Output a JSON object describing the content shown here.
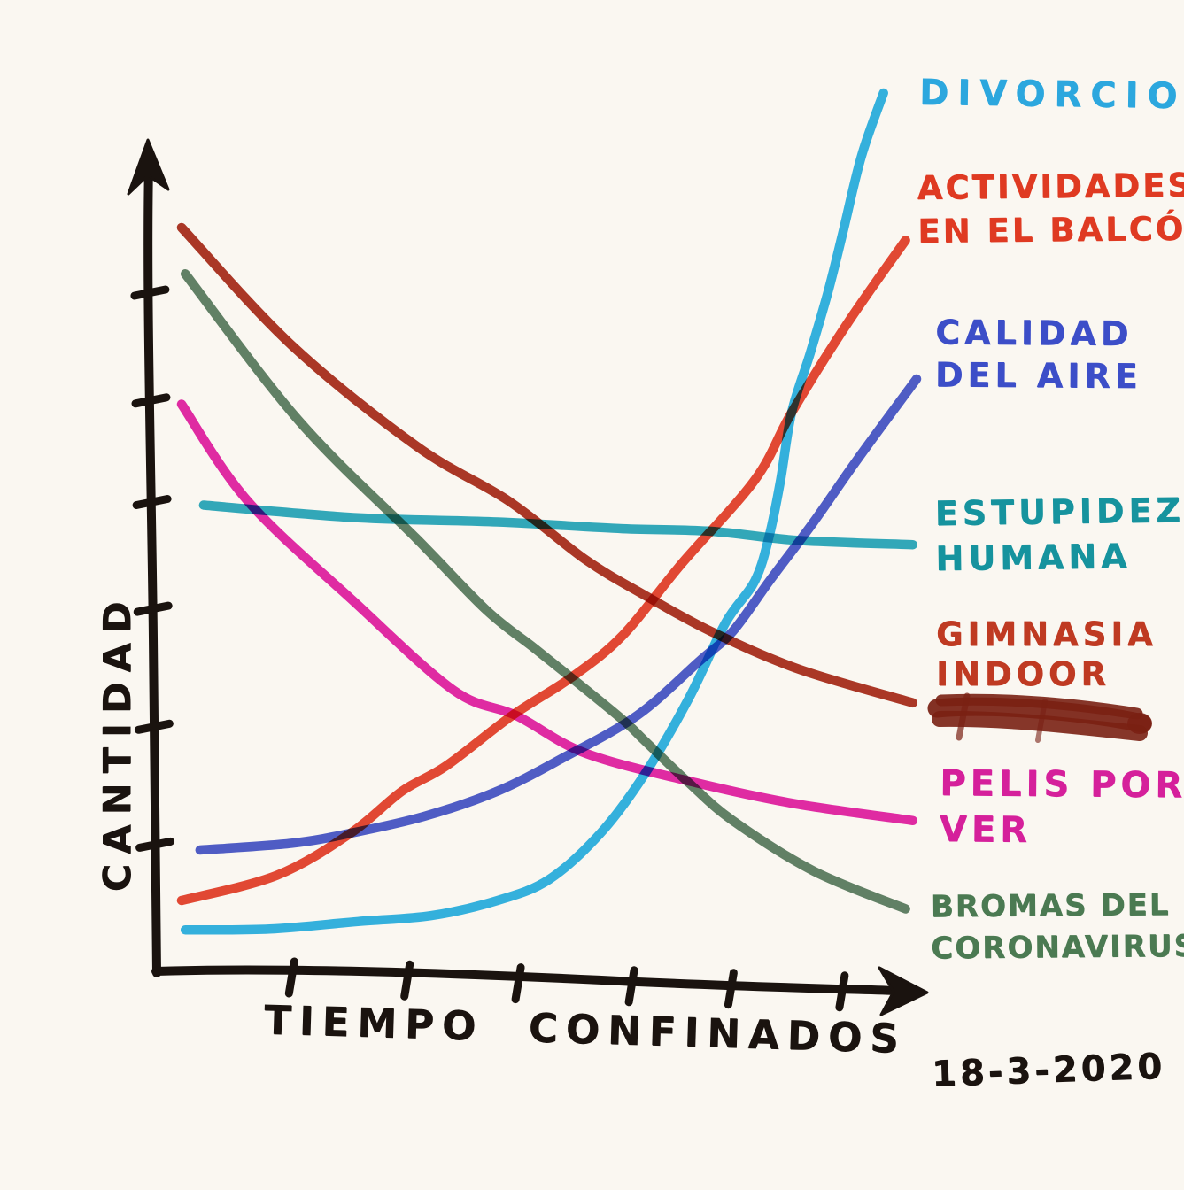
{
  "page": {
    "title": "",
    "date_note": "18-3-2020",
    "paper_color": "#faf7f1",
    "ink_color": "#1a130f"
  },
  "chart_data": {
    "type": "line",
    "title": "",
    "xlabel": "TIEMPO CONFINADOS",
    "ylabel": "CANTIDAD",
    "grid": false,
    "legend_position": "right",
    "x_axis": {
      "range": [
        0,
        100
      ],
      "ticks": [
        15.1,
        30.7,
        46.1,
        61.1,
        75.1,
        89.8
      ],
      "arrow": true
    },
    "y_axis": {
      "range": [
        0,
        100
      ],
      "ticks": [
        10.7,
        24.9,
        38.6,
        51.3,
        63.7,
        76.3
      ],
      "arrow": true
    },
    "series": [
      {
        "name": "DIVORCIOS",
        "label_lines": [
          "DIVORCIOS",
          ""
        ],
        "color": "#2ab2e8",
        "label_color": "#2ca7de",
        "trend": "flat then sharply rising",
        "points": [
          [
            0.5,
            0.5
          ],
          [
            12,
            0.6
          ],
          [
            24,
            1.5
          ],
          [
            34,
            2.2
          ],
          [
            43,
            4
          ],
          [
            50,
            6.5
          ],
          [
            57,
            12
          ],
          [
            63,
            19
          ],
          [
            69,
            28
          ],
          [
            74,
            37
          ],
          [
            78,
            42
          ],
          [
            80,
            47.5
          ],
          [
            81.5,
            54
          ],
          [
            83,
            62
          ],
          [
            85.5,
            69
          ],
          [
            88,
            76.5
          ],
          [
            90,
            83.5
          ],
          [
            92.5,
            92.5
          ],
          [
            95.5,
            100
          ]
        ]
      },
      {
        "name": "ACTIVIDADES EN EL BALCÓN",
        "label_lines": [
          "ACTIVIDADES",
          "EN EL BALCÓN"
        ],
        "color": "#e5402b",
        "label_color": "#df3a22",
        "trend": "steadily rising",
        "points": [
          [
            0,
            4
          ],
          [
            13,
            7
          ],
          [
            23,
            12
          ],
          [
            30,
            17
          ],
          [
            36,
            20
          ],
          [
            45,
            26
          ],
          [
            53,
            30.5
          ],
          [
            60,
            35.5
          ],
          [
            68,
            44
          ],
          [
            78,
            54
          ],
          [
            83,
            62
          ],
          [
            90.5,
            72.5
          ],
          [
            98.5,
            82.5
          ]
        ]
      },
      {
        "name": "CALIDAD DEL AIRE",
        "label_lines": [
          "CALIDAD",
          "DEL AIRE"
        ],
        "color": "#4756cd",
        "label_color": "#3c4ec8",
        "trend": "flat then rising",
        "points": [
          [
            2.5,
            10
          ],
          [
            15,
            10.8
          ],
          [
            23,
            12
          ],
          [
            33,
            14
          ],
          [
            43,
            17
          ],
          [
            52,
            21
          ],
          [
            62,
            26
          ],
          [
            70.5,
            32.5
          ],
          [
            75,
            36
          ],
          [
            80,
            42
          ],
          [
            86,
            49
          ],
          [
            92,
            56.5
          ],
          [
            100,
            66
          ]
        ]
      },
      {
        "name": "ESTUPIDEZ HUMANA",
        "label_lines": [
          "ESTUPIDEZ",
          "HUMANA"
        ],
        "color": "#28a9c0",
        "label_color": "#16939e",
        "trend": "constant",
        "points": [
          [
            3,
            51
          ],
          [
            24,
            49.5
          ],
          [
            43,
            49
          ],
          [
            60,
            48.2
          ],
          [
            72,
            47.9
          ],
          [
            84,
            46.8
          ],
          [
            99.5,
            46.3
          ]
        ]
      },
      {
        "name": "GIMNASIA INDOOR",
        "label_lines": [
          "GIMNASIA",
          "INDOOR"
        ],
        "color": "#aa2e1c",
        "label_color": "#bf3a22",
        "label_scribble": true,
        "scribble_color": "#7c2114",
        "trend": "falling, flattening",
        "points": [
          [
            0,
            84
          ],
          [
            15,
            70
          ],
          [
            32,
            58
          ],
          [
            44.5,
            51.5
          ],
          [
            55,
            44.5
          ],
          [
            63,
            40.3
          ],
          [
            72,
            36
          ],
          [
            84,
            31.5
          ],
          [
            99.5,
            27.5
          ]
        ]
      },
      {
        "name": "PELIS POR VER",
        "label_lines": [
          "PELIS POR",
          "VER"
        ],
        "color": "#e321a8",
        "label_color": "#d5209b",
        "trend": "falling, flattening",
        "points": [
          [
            0,
            63
          ],
          [
            9,
            51.5
          ],
          [
            23.5,
            39.5
          ],
          [
            37,
            29
          ],
          [
            45.5,
            26
          ],
          [
            55,
            21.5
          ],
          [
            70,
            18
          ],
          [
            83.5,
            15.5
          ],
          [
            99.5,
            13.5
          ]
        ]
      },
      {
        "name": "BROMAS DEL CORONAVIRUS",
        "label_lines": [
          "BROMAS DEL",
          "CORONAVIRUS"
        ],
        "color": "#5b7d63",
        "label_color": "#4b7a52",
        "trend": "steadily falling",
        "points": [
          [
            0.5,
            78.5
          ],
          [
            16,
            61
          ],
          [
            32,
            47
          ],
          [
            41.5,
            38.5
          ],
          [
            48,
            34
          ],
          [
            53,
            30.5
          ],
          [
            60,
            25.5
          ],
          [
            63,
            23
          ],
          [
            69,
            18
          ],
          [
            75,
            13.5
          ],
          [
            86,
            7.5
          ],
          [
            98.5,
            3
          ]
        ]
      }
    ]
  }
}
